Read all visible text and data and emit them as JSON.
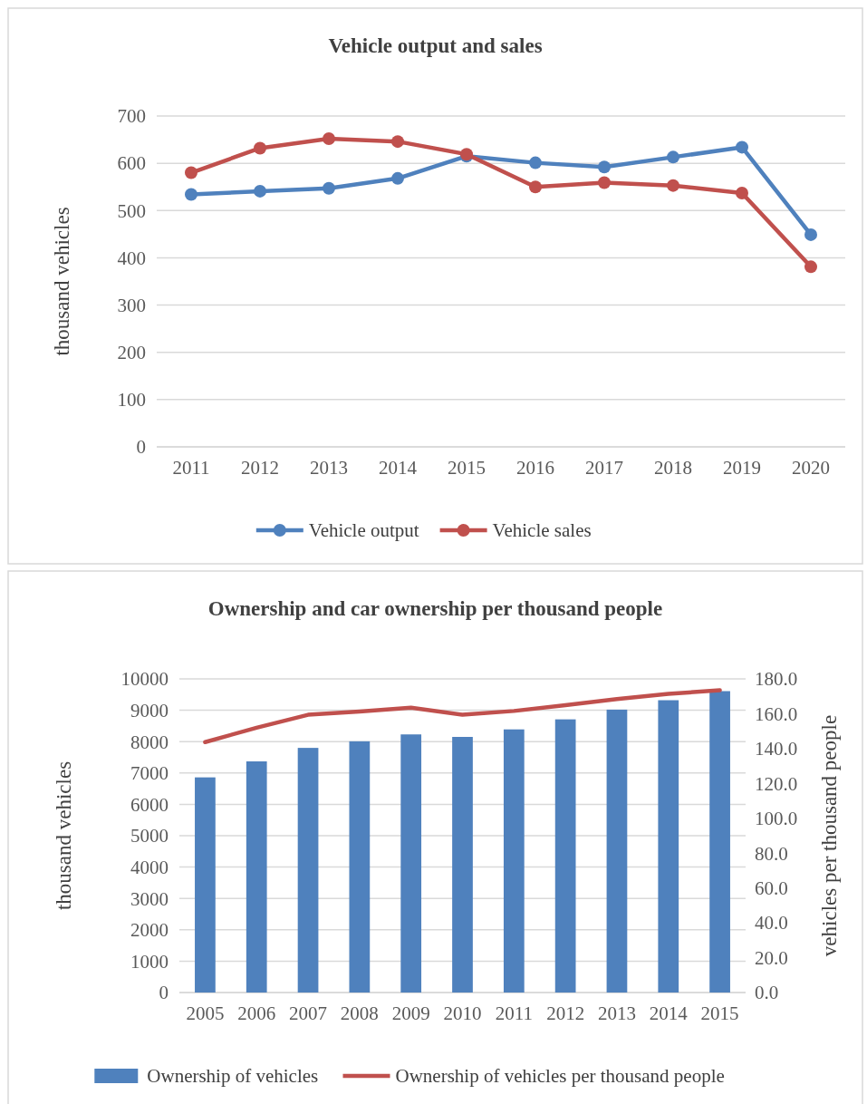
{
  "chart_data": [
    {
      "type": "line",
      "title": "Vehicle output and sales",
      "ylabel": "thousand vehicles",
      "categories": [
        "2011",
        "2012",
        "2013",
        "2014",
        "2015",
        "2016",
        "2017",
        "2018",
        "2019",
        "2020"
      ],
      "series": [
        {
          "name": "Vehicle output",
          "color": "#4f81bd",
          "values": [
            534,
            541,
            547,
            568,
            615,
            601,
            592,
            613,
            634,
            449
          ]
        },
        {
          "name": "Vehicle sales",
          "color": "#c0504d",
          "values": [
            580,
            632,
            652,
            646,
            619,
            550,
            559,
            553,
            537,
            381
          ]
        }
      ],
      "ylim": [
        0,
        700
      ],
      "yticks": [
        0,
        100,
        200,
        300,
        400,
        500,
        600,
        700
      ],
      "grid": "y",
      "legend": "bottom",
      "marker": "circle"
    },
    {
      "type": "bar",
      "title": "Ownership and car ownership per thousand people",
      "ylabel": "thousand vehicles",
      "y2label": "vehicles per thousand people",
      "categories": [
        "2005",
        "2006",
        "2007",
        "2008",
        "2009",
        "2010",
        "2011",
        "2012",
        "2013",
        "2014",
        "2015"
      ],
      "series": [
        {
          "name": "Ownership of vehicles",
          "color": "#4f81bd",
          "values": [
            6860,
            7370,
            7800,
            8010,
            8230,
            8150,
            8390,
            8710,
            9020,
            9320,
            9610
          ]
        },
        {
          "name": "Ownership of vehicles per thousand people",
          "type": "line",
          "axis": "y2",
          "color": "#c0504d",
          "values": [
            143.7,
            152,
            159.4,
            161.3,
            163.5,
            159.4,
            161.6,
            164.9,
            168.4,
            171.4,
            173.5
          ]
        }
      ],
      "ylim": [
        0,
        10000
      ],
      "yticks": [
        0,
        1000,
        2000,
        3000,
        4000,
        5000,
        6000,
        7000,
        8000,
        9000,
        10000
      ],
      "y2lim": [
        0,
        180
      ],
      "y2ticks": [
        {
          "value": 0,
          "label": "0.0"
        },
        {
          "value": 20,
          "label": "20.0"
        },
        {
          "value": 40,
          "label": "40.0"
        },
        {
          "value": 60,
          "label": "60.0"
        },
        {
          "value": 80,
          "label": "80.0"
        },
        {
          "value": 100,
          "label": "100.0"
        },
        {
          "value": 120,
          "label": "120.0"
        },
        {
          "value": 140,
          "label": "140.0"
        },
        {
          "value": 160,
          "label": "160.0"
        },
        {
          "value": 180,
          "label": "180.0"
        }
      ],
      "grid": "y",
      "legend": "bottom"
    }
  ]
}
